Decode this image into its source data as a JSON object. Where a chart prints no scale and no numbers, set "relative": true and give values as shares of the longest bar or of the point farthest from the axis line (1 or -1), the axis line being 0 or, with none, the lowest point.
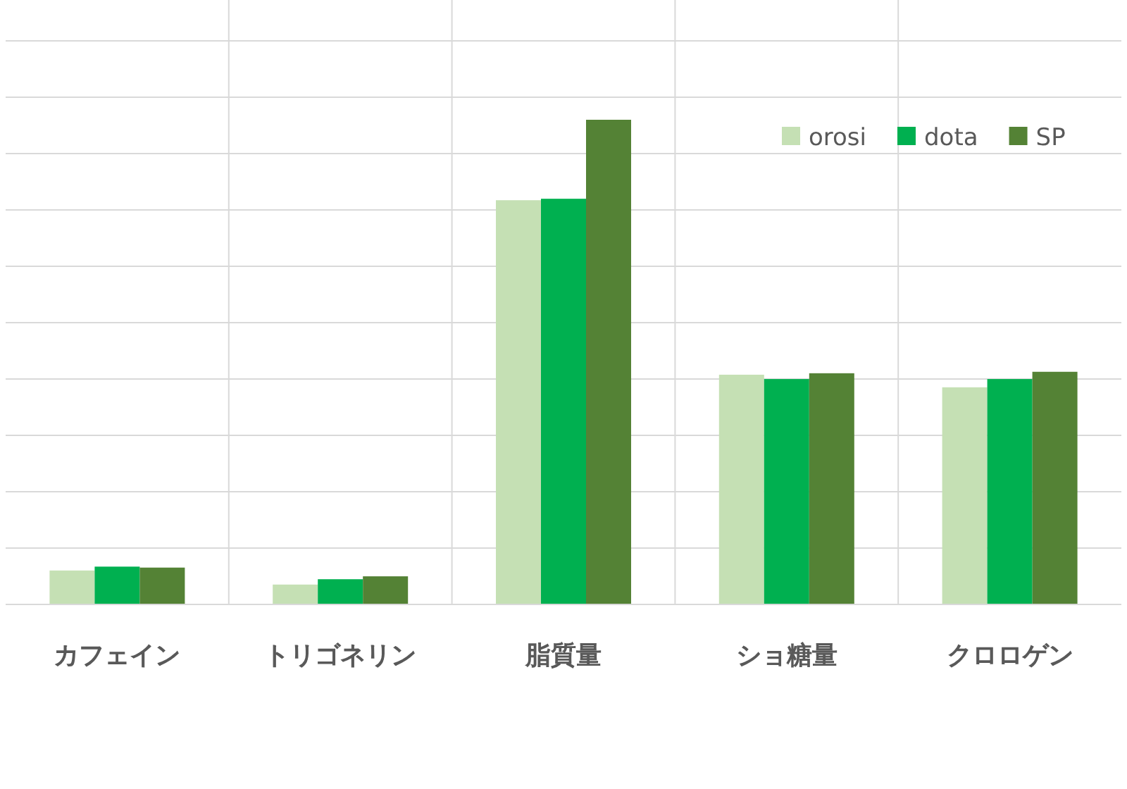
{
  "chart_data": {
    "type": "bar",
    "relative": true,
    "grid": true,
    "legend": "top right",
    "categories": [
      "カフェイン",
      "トリゴネリン",
      "脂質量",
      "ショ糖量",
      "クロロゲン"
    ],
    "series": [
      {
        "name": "orosi",
        "color": "#c5e0b4",
        "values": [
          0.07,
          0.041,
          0.834,
          0.474,
          0.448
        ]
      },
      {
        "name": "dota",
        "color": "#00b050",
        "values": [
          0.078,
          0.052,
          0.837,
          0.465,
          0.465
        ]
      },
      {
        "name": "SP",
        "color": "#548235",
        "values": [
          0.076,
          0.058,
          1,
          0.477,
          0.48
        ]
      }
    ]
  }
}
